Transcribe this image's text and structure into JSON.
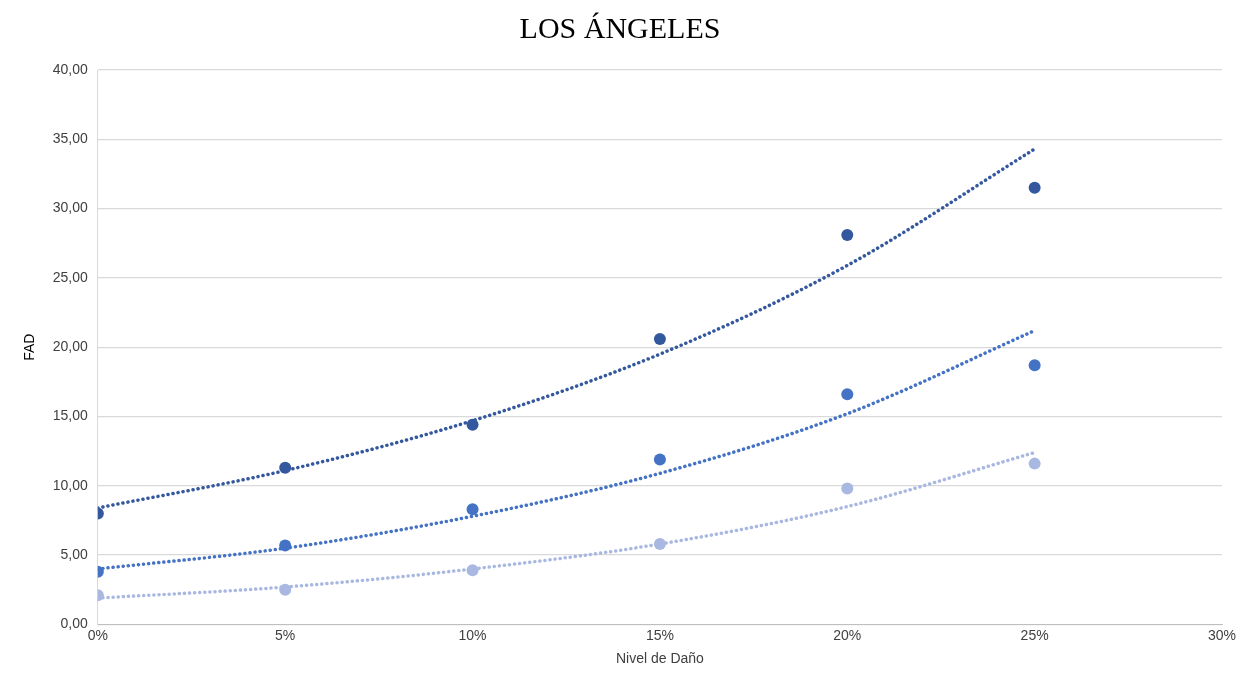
{
  "chart_data": {
    "type": "scatter",
    "title": "LOS ÁNGELES",
    "xlabel": "Nivel de Daño",
    "ylabel": "FAD",
    "x": [
      0,
      5,
      10,
      15,
      20,
      25
    ],
    "series": [
      {
        "color": "#34589e",
        "values": [
          8.0,
          11.3,
          14.4,
          20.6,
          28.1,
          31.5
        ],
        "marker": "circle"
      },
      {
        "color": "#4472c4",
        "values": [
          3.8,
          5.7,
          8.3,
          11.9,
          16.6,
          18.7
        ],
        "marker": "circle"
      },
      {
        "color": "#a9b8e0",
        "values": [
          2.1,
          2.5,
          3.9,
          5.8,
          9.8,
          11.6
        ],
        "marker": "circle"
      },
      {
        "type": "line",
        "color": "#34589e",
        "values": [
          8.4,
          11.1,
          14.7,
          19.5,
          25.9,
          34.3
        ],
        "marker": "none",
        "line_style": "dotted"
      },
      {
        "type": "line",
        "color": "#4472c4",
        "values": [
          4.0,
          5.5,
          7.8,
          10.9,
          15.2,
          21.2
        ],
        "marker": "none",
        "line_style": "dotted"
      },
      {
        "type": "line",
        "color": "#a9b8e0",
        "values": [
          1.9,
          2.7,
          4.0,
          5.8,
          8.5,
          12.4
        ],
        "marker": "none",
        "line_style": "dotted"
      }
    ],
    "xlim": [
      0,
      30
    ],
    "xticks": [
      {
        "value": 0,
        "label": "0%"
      },
      {
        "value": 5,
        "label": "5%"
      },
      {
        "value": 10,
        "label": "10%"
      },
      {
        "value": 15,
        "label": "15%"
      },
      {
        "value": 20,
        "label": "20%"
      },
      {
        "value": 25,
        "label": "25%"
      },
      {
        "value": 30,
        "label": "30%"
      }
    ],
    "ylim": [
      0,
      40
    ],
    "yticks": [
      {
        "value": 0,
        "label": "0,00"
      },
      {
        "value": 5,
        "label": "5,00"
      },
      {
        "value": 10,
        "label": "10,00"
      },
      {
        "value": 15,
        "label": "15,00"
      },
      {
        "value": 20,
        "label": "20,00"
      },
      {
        "value": 25,
        "label": "25,00"
      },
      {
        "value": 30,
        "label": "30,00"
      },
      {
        "value": 35,
        "label": "35,00"
      },
      {
        "value": 40,
        "label": "40,00"
      }
    ],
    "grid": "y",
    "legend": false
  }
}
